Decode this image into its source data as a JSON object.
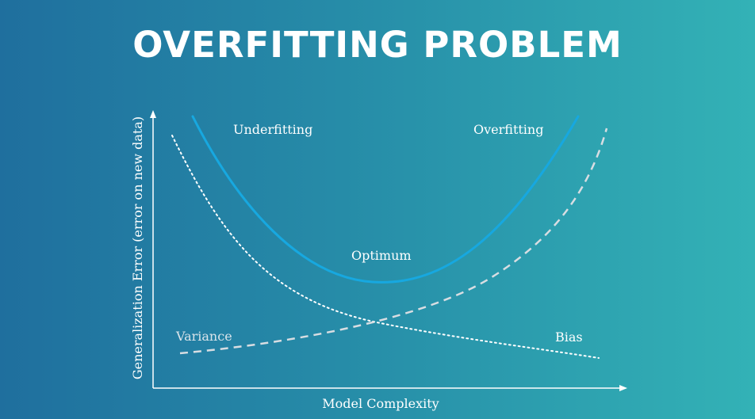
{
  "title": "OVERFITTING PROBLEM",
  "axes": {
    "x_label": "Model Complexity",
    "y_label": "Generalization Error (error on new data)"
  },
  "curve_labels": {
    "underfitting": "Underfitting",
    "overfitting": "Overfitting",
    "optimum": "Optimum",
    "variance": "Variance",
    "bias": "Bias"
  },
  "colors": {
    "total_error_curve": "#17a8e0",
    "dotted_curve": "#ffffff",
    "dashed_curve": "#d8dde2",
    "axes": "#ffffff"
  }
}
